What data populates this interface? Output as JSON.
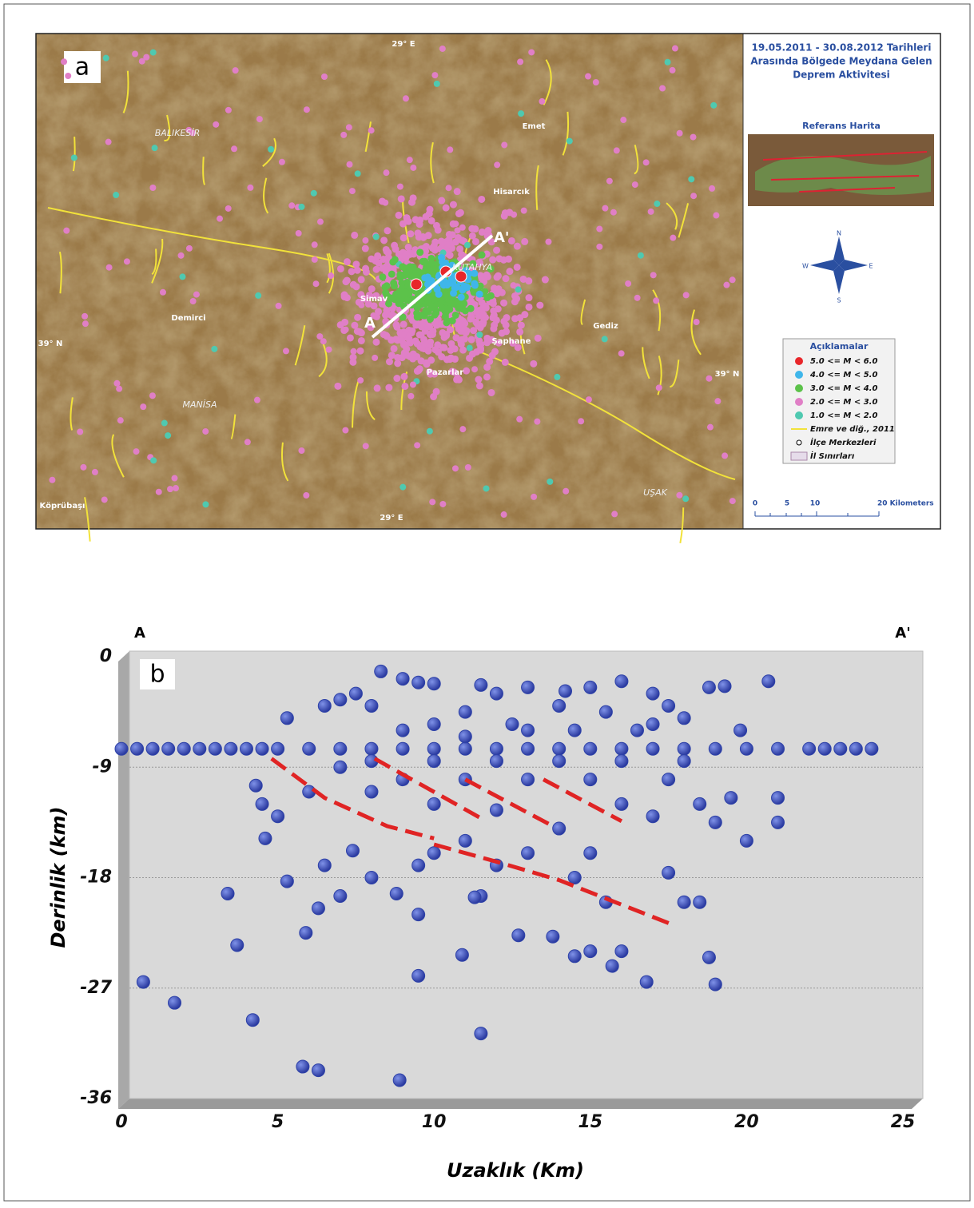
{
  "map": {
    "panel_label": "a",
    "labels": [
      "29° E",
      "29° E",
      "BALIKESİR",
      "Emet",
      "Hisarcık",
      "KÜTAHYA",
      "Simav",
      "Demirci",
      "39° N",
      "39° N",
      "Şaphane",
      "Gediz",
      "Pazarlar",
      "MANİSA",
      "UŞAK",
      "Köprübaşı"
    ],
    "section_ends": [
      "A",
      "A'"
    ],
    "info_title": [
      "19.05.2011 - 30.08.2012 Tarihleri",
      "Arasında Bölgede Meydana Gelen",
      "Deprem Aktivitesi"
    ],
    "reference_title": "Referans Harita",
    "compass": [
      "N",
      "S",
      "E",
      "W"
    ],
    "legend": {
      "title": "Açıklamalar",
      "items": [
        {
          "label": "5.0 <= M < 6.0",
          "color": "#e8262a"
        },
        {
          "label": "4.0 <= M < 5.0",
          "color": "#3fb6ea"
        },
        {
          "label": "3.0 <= M < 4.0",
          "color": "#5cc24a"
        },
        {
          "label": "2.0 <= M < 3.0",
          "color": "#e07fc6"
        },
        {
          "label": "1.0 <= M < 2.0",
          "color": "#4fc9b0"
        }
      ],
      "extra": [
        "Emre ve diğ., 2011",
        "İlçe Merkezleri",
        "İl Sınırları"
      ]
    },
    "scale_labels": [
      "0",
      "5",
      "10",
      "20 Kilometers"
    ]
  },
  "chart_data": {
    "type": "scatter",
    "panel_label": "b",
    "x_label": "Uzaklık (Km)",
    "y_label": "Derinlik (km)",
    "section_ends": [
      "A",
      "A'"
    ],
    "color": "#2e42a8",
    "grid": true,
    "xlim": [
      0,
      25
    ],
    "xticks": [
      0,
      5,
      10,
      15,
      20,
      25
    ],
    "ylim": [
      -36,
      0
    ],
    "yticks": [
      0,
      -9,
      -18,
      -27,
      -36
    ],
    "x": [
      0,
      0.5,
      1,
      1.5,
      2,
      2.5,
      3,
      3.5,
      4,
      4.5,
      5,
      6,
      7,
      8,
      9,
      10,
      11,
      12,
      13,
      14,
      15,
      16,
      17,
      18,
      19,
      20,
      21,
      22,
      22.5,
      23,
      23.5,
      24,
      8.3,
      9,
      9.5,
      10,
      11.5,
      7.5,
      6.5,
      5.3,
      12,
      13,
      14.2,
      15,
      16,
      17,
      18.8,
      19.3,
      20.7,
      19.8,
      14,
      11,
      8,
      7,
      15.5,
      17.5,
      10,
      12.5,
      4.3,
      4.5,
      5,
      4.6,
      5.3,
      3.4,
      3.7,
      5.9,
      6.3,
      6.5,
      7,
      7.4,
      8,
      8.8,
      9.5,
      9.5,
      10,
      11,
      11.5,
      12,
      12.7,
      13,
      13.8,
      14.5,
      15.5,
      15.7,
      16,
      16.8,
      17.5,
      18,
      18.5,
      18.8,
      19,
      19,
      19.5,
      20,
      21,
      21,
      18.5,
      17,
      14,
      12,
      10,
      8,
      6,
      7,
      9,
      11,
      13,
      15,
      16,
      17.5,
      15,
      11.3,
      14.5,
      15,
      10.9,
      9.5,
      11.5,
      0.7,
      1.7,
      4.2,
      5.8,
      6.3,
      8.9,
      12,
      14,
      16,
      10,
      8,
      18,
      13,
      16.5,
      11,
      9,
      17,
      18,
      14.5
    ],
    "values": [
      -7.5,
      -7.5,
      -7.5,
      -7.5,
      -7.5,
      -7.5,
      -7.5,
      -7.5,
      -7.5,
      -7.5,
      -7.5,
      -7.5,
      -7.5,
      -7.5,
      -7.5,
      -7.5,
      -7.5,
      -7.5,
      -7.5,
      -7.5,
      -7.5,
      -7.5,
      -7.5,
      -7.5,
      -7.5,
      -7.5,
      -7.5,
      -7.5,
      -7.5,
      -7.5,
      -7.5,
      -7.5,
      -1.2,
      -1.8,
      -2.1,
      -2.2,
      -2.3,
      -3,
      -4,
      -5,
      -3,
      -2.5,
      -2.8,
      -2.5,
      -2,
      -3,
      -2.5,
      -2.4,
      -2,
      -6,
      -4,
      -4.5,
      -4,
      -3.5,
      -4.5,
      -4,
      -5.5,
      -5.5,
      -10.5,
      -12,
      -13,
      -14.8,
      -18.3,
      -19.3,
      -23.5,
      -22.5,
      -20.5,
      -17,
      -19.5,
      -15.8,
      -18,
      -19.3,
      -17,
      -21,
      -16,
      -15,
      -19.5,
      -17,
      -22.7,
      -16,
      -22.8,
      -18,
      -20,
      -25.2,
      -24,
      -26.5,
      -17.6,
      -20,
      -20,
      -24.5,
      -26.7,
      -13.5,
      -11.5,
      -15,
      -13.5,
      -11.5,
      -12,
      -13,
      -14,
      -12.5,
      -12,
      -11,
      -11,
      -9,
      -10,
      -10,
      -10,
      -10,
      -12,
      -10,
      -16,
      -19.6,
      -24.4,
      -24,
      -24.3,
      -26,
      -30.7,
      -26.5,
      -28.2,
      -29.6,
      -33.4,
      -33.7,
      -34.5,
      -8.5,
      -8.5,
      -8.5,
      -8.5,
      -8.5,
      -8.5,
      -6,
      -6,
      -6.5,
      -6,
      -5.5,
      -5,
      -6
    ],
    "trend_color": "#e02424",
    "trend_lines": [
      {
        "x": [
          4.8,
          6.5,
          8.5,
          10
        ],
        "y": [
          -8.3,
          -11.5,
          -13.8,
          -14.8
        ]
      },
      {
        "x": [
          10,
          12,
          14,
          17.6
        ],
        "y": [
          -15.3,
          -16.7,
          -18.2,
          -21.8
        ]
      },
      {
        "x": [
          8.1,
          11.6
        ],
        "y": [
          -8.3,
          -13.3
        ]
      },
      {
        "x": [
          11,
          13.8
        ],
        "y": [
          -10,
          -13.8
        ]
      },
      {
        "x": [
          13.5,
          16
        ],
        "y": [
          -10,
          -13.4
        ]
      }
    ]
  }
}
